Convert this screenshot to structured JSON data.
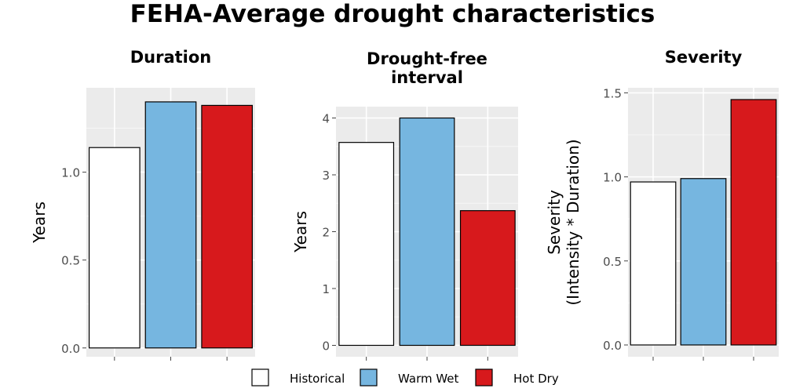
{
  "title": "FEHA-Average drought characteristics",
  "legend": {
    "placement": "bottom",
    "items": [
      {
        "label": "Historical",
        "color": "#ffffff"
      },
      {
        "label": "Warm Wet",
        "color": "#76b6e0"
      },
      {
        "label": "Hot Dry",
        "color": "#d7191c"
      }
    ]
  },
  "chart_data": [
    {
      "type": "bar",
      "title": "Duration",
      "ylabel": "Years",
      "categories": [
        "Historical",
        "Warm Wet",
        "Hot Dry"
      ],
      "values": [
        1.14,
        1.4,
        1.38
      ],
      "ylim": [
        -0.05,
        1.48
      ],
      "yticks": [
        0.0,
        0.5,
        1.0
      ],
      "ytick_labels": [
        "0.0",
        "0.5",
        "1.0"
      ],
      "grid": true
    },
    {
      "type": "bar",
      "title": "Drought-free interval",
      "title_lines": [
        "Drought-free",
        "interval"
      ],
      "ylabel": "Years",
      "categories": [
        "Historical",
        "Warm Wet",
        "Hot Dry"
      ],
      "values": [
        3.57,
        4.0,
        2.37
      ],
      "ylim": [
        -0.2,
        4.2
      ],
      "yticks": [
        0,
        1,
        2,
        3,
        4
      ],
      "ytick_labels": [
        "0",
        "1",
        "2",
        "3",
        "4"
      ],
      "grid": true
    },
    {
      "type": "bar",
      "title": "Severity",
      "ylabel_lines": [
        "Severity",
        "(Intensity * Duration)"
      ],
      "categories": [
        "Historical",
        "Warm Wet",
        "Hot Dry"
      ],
      "values": [
        0.97,
        0.99,
        1.46
      ],
      "ylim": [
        -0.07,
        1.53
      ],
      "yticks": [
        0.0,
        0.5,
        1.0,
        1.5
      ],
      "ytick_labels": [
        "0.0",
        "0.5",
        "1.0",
        "1.5"
      ],
      "grid": true
    }
  ]
}
